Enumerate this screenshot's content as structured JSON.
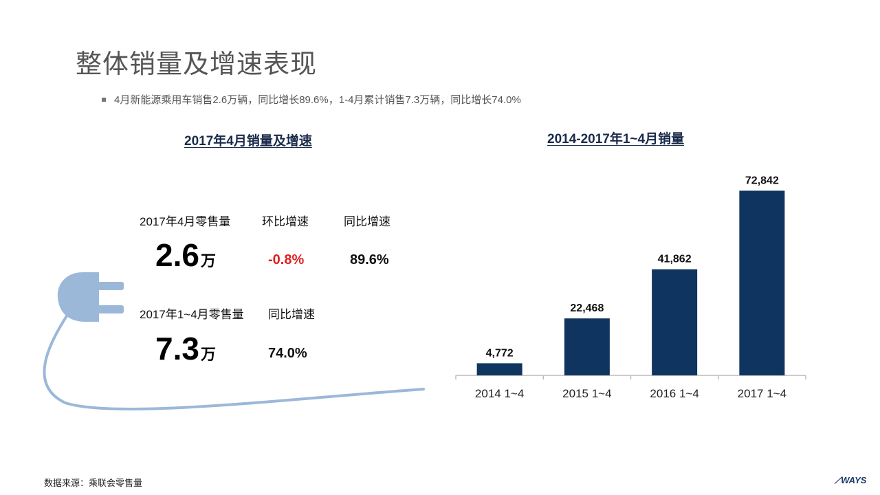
{
  "header": {
    "title": "整体销量及增速表现",
    "bullet": "4月新能源乘用车销售2.6万辆，同比增长89.6%，1-4月累计销售7.3万辆，同比增长74.0%"
  },
  "left_panel": {
    "title": "2017年4月销量及增速",
    "row1": {
      "label_sales": "2017年4月零售量",
      "label_mom": "环比增速",
      "label_yoy": "同比增速",
      "sales_value": "2.6",
      "sales_unit": "万",
      "mom_value": "-0.8%",
      "yoy_value": "89.6%"
    },
    "row2": {
      "label_sales": "2017年1~4月零售量",
      "label_yoy": "同比增速",
      "sales_value": "7.3",
      "sales_unit": "万",
      "yoy_value": "74.0%"
    }
  },
  "chart_data": {
    "type": "bar",
    "title": "2014-2017年1~4月销量",
    "categories": [
      "2014 1~4",
      "2015 1~4",
      "2016 1~4",
      "2017 1~4"
    ],
    "values": [
      4772,
      22468,
      41862,
      72842
    ],
    "value_labels": [
      "4,772",
      "22,468",
      "41,862",
      "72,842"
    ],
    "ylim": [
      0,
      80000
    ],
    "grid": false,
    "bar_color": "#0f3460"
  },
  "footer": {
    "source": "数据来源：乘联会零售量",
    "logo": "WAYS"
  }
}
